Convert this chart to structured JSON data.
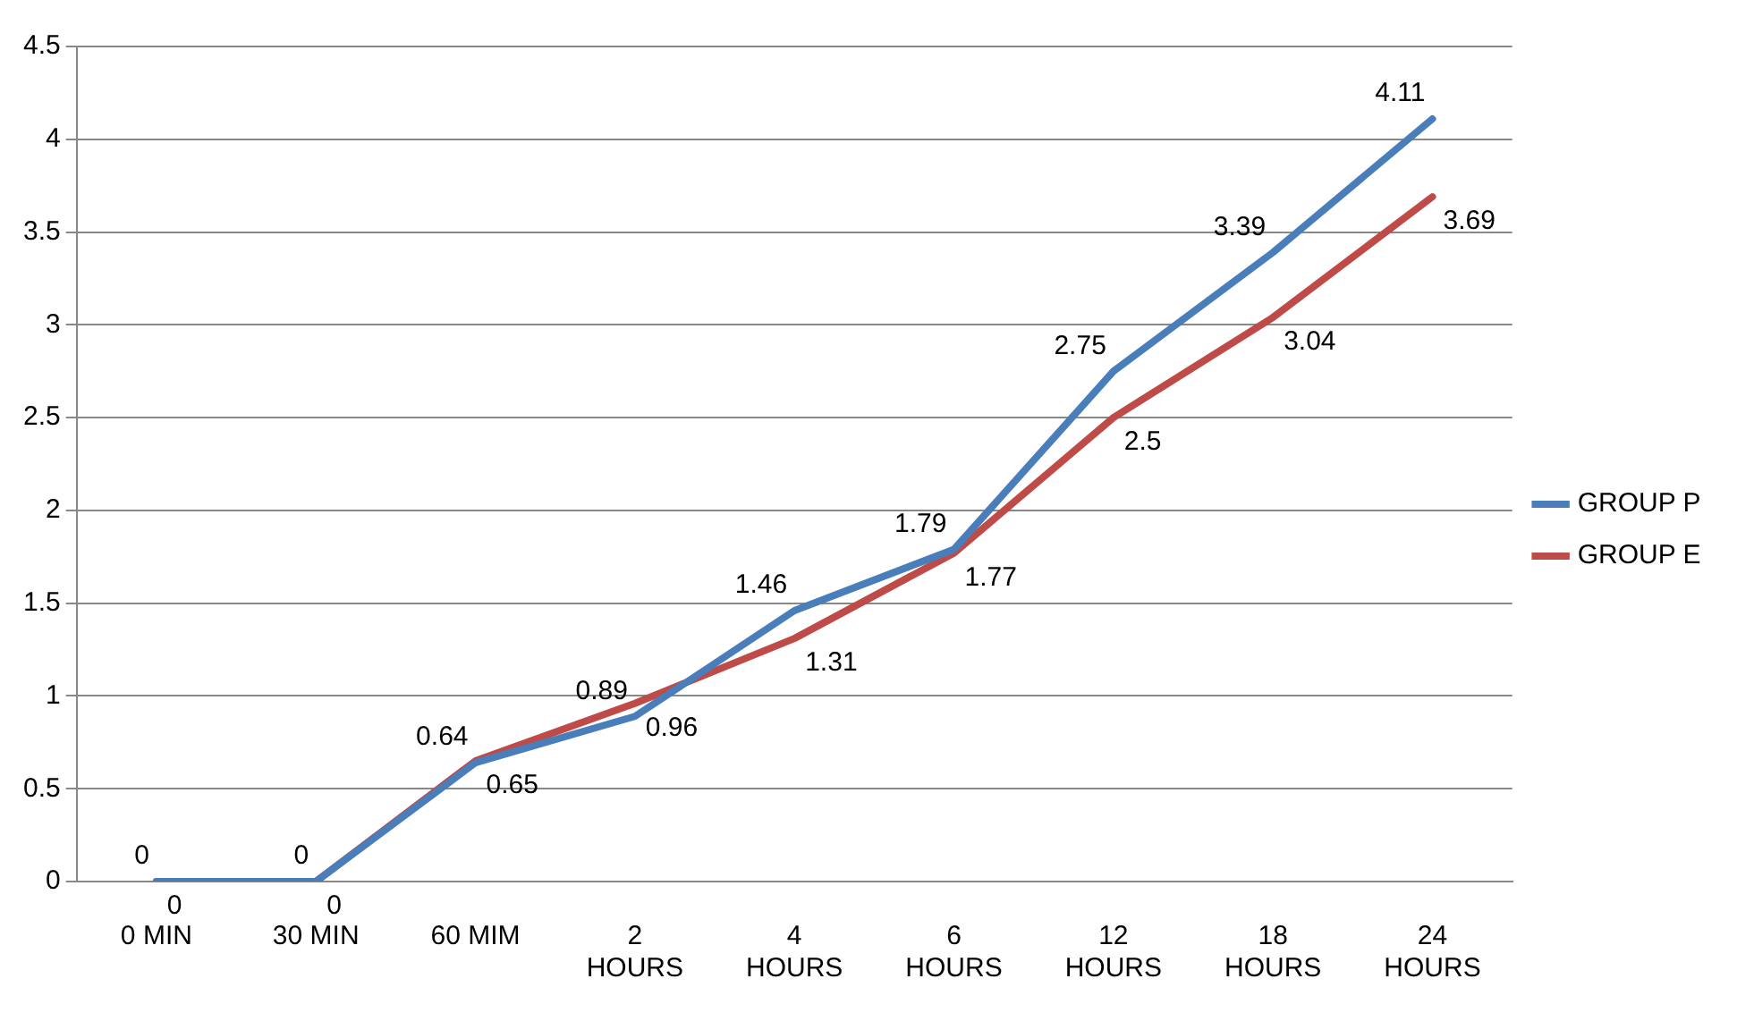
{
  "chart_data": {
    "type": "line",
    "categories": [
      "0 MIN",
      "30 MIN",
      "60 MIM",
      "2 HOURS",
      "4 HOURS",
      "6 HOURS",
      "12 HOURS",
      "18 HOURS",
      "24 HOURS"
    ],
    "series": [
      {
        "name": "GROUP P",
        "color": "#4a7ebb",
        "values": [
          0,
          0,
          0.64,
          0.89,
          1.46,
          1.79,
          2.75,
          3.39,
          4.11
        ]
      },
      {
        "name": "GROUP E",
        "color": "#be4b48",
        "values": [
          0,
          0,
          0.65,
          0.96,
          1.31,
          1.77,
          2.5,
          3.04,
          3.69
        ]
      }
    ],
    "ylim": [
      0,
      4.5
    ],
    "yticks": [
      0,
      0.5,
      1,
      1.5,
      2,
      2.5,
      3,
      3.5,
      4,
      4.5
    ],
    "grid": "y",
    "legend": "right",
    "marker": "none",
    "line_style": "solid",
    "data_labels": true
  }
}
